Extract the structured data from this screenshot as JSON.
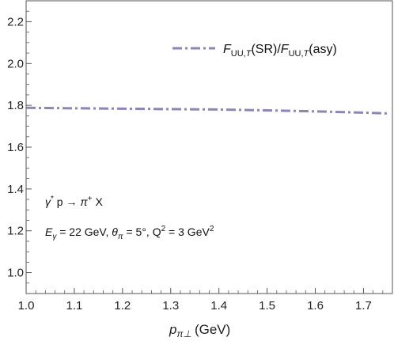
{
  "chart_data": {
    "type": "line",
    "x_ticks": [
      "1.0",
      "1.1",
      "1.2",
      "1.3",
      "1.4",
      "1.5",
      "1.6",
      "1.7"
    ],
    "y_ticks": [
      "1.0",
      "1.2",
      "1.4",
      "1.6",
      "1.8",
      "2.0",
      "2.2"
    ],
    "xlim": [
      1.0,
      1.76
    ],
    "ylim": [
      0.9,
      2.3
    ],
    "grid": false,
    "legend_position": "top-right",
    "colors": {
      "series": "#8a86b8",
      "axes": "#555555"
    },
    "series": [
      {
        "name": "F_UU,T(SR)/F_UU,T(asy)",
        "style": "dash-dot",
        "x": [
          1.0,
          1.1,
          1.2,
          1.3,
          1.4,
          1.5,
          1.6,
          1.7,
          1.75
        ],
        "y": [
          1.788,
          1.786,
          1.784,
          1.782,
          1.78,
          1.776,
          1.771,
          1.765,
          1.761
        ]
      }
    ],
    "xlabel": {
      "var_main": "p",
      "var_sub": "π⊥",
      "unit": "(GeV)"
    },
    "legend_label": {
      "f1": "F",
      "f1_sub": "UU,",
      "f1_sub_t": "T",
      "mid": "(SR)/",
      "f2": "F",
      "f2_sub": "UU,",
      "f2_sub_t": "T",
      "end": "(asy)"
    },
    "annotations": {
      "reaction": {
        "gamma": "γ",
        "star": "*",
        "p_arrow": " p → ",
        "pi": "π",
        "plus": "+",
        "x": " X"
      },
      "kinematics": {
        "e": "E",
        "e_sub": "γ",
        "e_val": " = 22 GeV, ",
        "theta": "θ",
        "theta_sub": "π",
        "theta_val": " = 5°, Q",
        "q_sup": "2",
        "q_val": " = 3 GeV",
        "gev_sup": "2"
      }
    }
  }
}
